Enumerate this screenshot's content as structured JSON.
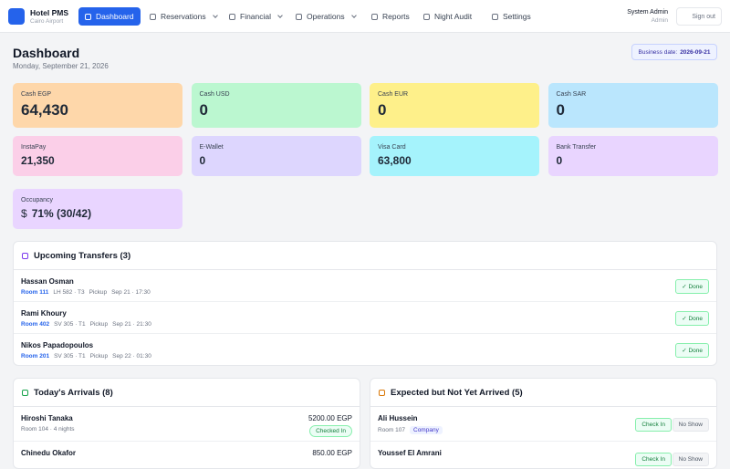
{
  "nav": {
    "brand": "Hotel PMS",
    "subtitle": "Cairo Airport",
    "items": [
      {
        "label": "Dashboard",
        "active": true,
        "dropdown": false
      },
      {
        "label": "Reservations",
        "active": false,
        "dropdown": true
      },
      {
        "label": "Financial",
        "active": false,
        "dropdown": true
      },
      {
        "label": "Operations",
        "active": false,
        "dropdown": true
      },
      {
        "label": "Reports",
        "active": false,
        "dropdown": false
      },
      {
        "label": "Night Audit",
        "active": false,
        "dropdown": false
      },
      {
        "label": "Settings",
        "active": false,
        "dropdown": false
      }
    ],
    "user": "System Admin",
    "role": "Admin",
    "signout": "Sign out"
  },
  "header": {
    "title": "Dashboard",
    "date": "Monday, September 21, 2026",
    "business_label": "Business date:",
    "business_value": "2026-09-21"
  },
  "cards": [
    {
      "label": "Cash EGP",
      "value": "64,430",
      "color": "#fed7aa"
    },
    {
      "label": "Cash USD",
      "value": "0",
      "color": "#bbf7d0"
    },
    {
      "label": "Cash EUR",
      "value": "0",
      "color": "#fef08a"
    },
    {
      "label": "Cash SAR",
      "value": "0",
      "color": "#bae6fd"
    },
    {
      "label": "InstaPay",
      "value": "21,350",
      "color": "#fbcfe8"
    },
    {
      "label": "E-Wallet",
      "value": "0",
      "color": "#ddd6fe"
    },
    {
      "label": "Visa Card",
      "value": "63,800",
      "color": "#a5f3fc"
    },
    {
      "label": "Bank Transfer",
      "value": "0",
      "color": "#e9d5ff"
    },
    {
      "label": "Occupancy",
      "icon": "$",
      "value": "71% (30/42)",
      "color": "#e9d5ff"
    }
  ],
  "transfers": {
    "title": "Upcoming Transfers (3)",
    "rows": [
      {
        "name": "Hassan Osman",
        "room": "Room 111",
        "flight": "LH 582 · T3",
        "kind": "Pickup",
        "time": "Sep 21 · 17:30",
        "action": "✓ Done"
      },
      {
        "name": "Rami Khoury",
        "room": "Room 402",
        "flight": "SV 305 · T1",
        "kind": "Pickup",
        "time": "Sep 21 · 21:30",
        "action": "✓ Done"
      },
      {
        "name": "Nikos Papadopoulos",
        "room": "Room 201",
        "flight": "SV 305 · T1",
        "kind": "Pickup",
        "time": "Sep 22 · 01:30",
        "action": "✓ Done"
      }
    ]
  },
  "arrivals": {
    "title": "Today's Arrivals (8)",
    "rows": [
      {
        "name": "Hiroshi Tanaka",
        "detail": "Room 104 · 4 nights",
        "amount": "5200.00 EGP",
        "status": "Checked In"
      },
      {
        "name": "Chinedu Okafor",
        "amount": "850.00 EGP"
      }
    ]
  },
  "expected": {
    "title": "Expected but Not Yet Arrived (5)",
    "rows": [
      {
        "name": "Ali Hussein",
        "room": "Room 107",
        "tag": "Company",
        "checkin": "Check In",
        "noshow": "No Show"
      },
      {
        "name": "Youssef El Amrani",
        "checkin": "Check In",
        "noshow": "No Show"
      }
    ]
  }
}
